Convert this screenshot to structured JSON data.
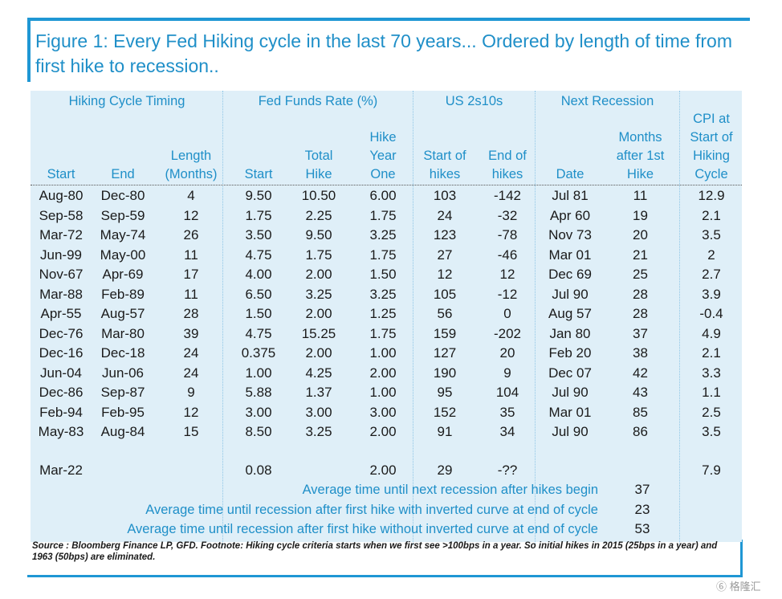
{
  "title": "Figure 1: Every Fed Hiking cycle in the last 70 years... Ordered by length of time from first hike to recession..",
  "groups": {
    "timing": "Hiking Cycle Timing",
    "fed": "Fed Funds Rate (%)",
    "us": "US 2s10s",
    "next": "Next Recession"
  },
  "headers": {
    "start": "Start",
    "end": "End",
    "length_1": "Length",
    "length_2": "(Months)",
    "ff_start": "Start",
    "total_1": "Total",
    "total_2": "Hike",
    "hike_1": "Hike",
    "hike_2": "Year",
    "hike_3": "One",
    "sof_1": "Start of",
    "sof_2": "hikes",
    "eof_1": "End of",
    "eof_2": "hikes",
    "date": "Date",
    "months_1": "Months",
    "months_2": "after 1st",
    "months_3": "Hike",
    "cpi_1": "CPI at",
    "cpi_2": "Start of",
    "cpi_3": "Hiking",
    "cpi_4": "Cycle"
  },
  "rows": [
    [
      "Aug-80",
      "Dec-80",
      "4",
      "9.50",
      "10.50",
      "6.00",
      "103",
      "-142",
      "Jul 81",
      "11",
      "12.9"
    ],
    [
      "Sep-58",
      "Sep-59",
      "12",
      "1.75",
      "2.25",
      "1.75",
      "24",
      "-32",
      "Apr 60",
      "19",
      "2.1"
    ],
    [
      "Mar-72",
      "May-74",
      "26",
      "3.50",
      "9.50",
      "3.25",
      "123",
      "-78",
      "Nov 73",
      "20",
      "3.5"
    ],
    [
      "Jun-99",
      "May-00",
      "11",
      "4.75",
      "1.75",
      "1.75",
      "27",
      "-46",
      "Mar 01",
      "21",
      "2"
    ],
    [
      "Nov-67",
      "Apr-69",
      "17",
      "4.00",
      "2.00",
      "1.50",
      "12",
      "12",
      "Dec 69",
      "25",
      "2.7"
    ],
    [
      "Mar-88",
      "Feb-89",
      "11",
      "6.50",
      "3.25",
      "3.25",
      "105",
      "-12",
      "Jul 90",
      "28",
      "3.9"
    ],
    [
      "Apr-55",
      "Aug-57",
      "28",
      "1.50",
      "2.00",
      "1.25",
      "56",
      "0",
      "Aug 57",
      "28",
      "-0.4"
    ],
    [
      "Dec-76",
      "Mar-80",
      "39",
      "4.75",
      "15.25",
      "1.75",
      "159",
      "-202",
      "Jan 80",
      "37",
      "4.9"
    ],
    [
      "Dec-16",
      "Dec-18",
      "24",
      "0.375",
      "2.00",
      "1.00",
      "127",
      "20",
      "Feb 20",
      "38",
      "2.1"
    ],
    [
      "Jun-04",
      "Jun-06",
      "24",
      "1.00",
      "4.25",
      "2.00",
      "190",
      "9",
      "Dec 07",
      "42",
      "3.3"
    ],
    [
      "Dec-86",
      "Sep-87",
      "9",
      "5.88",
      "1.37",
      "1.00",
      "95",
      "104",
      "Jul 90",
      "43",
      "1.1"
    ],
    [
      "Feb-94",
      "Feb-95",
      "12",
      "3.00",
      "3.00",
      "3.00",
      "152",
      "35",
      "Mar 01",
      "85",
      "2.5"
    ],
    [
      "May-83",
      "Aug-84",
      "15",
      "8.50",
      "3.25",
      "2.00",
      "91",
      "34",
      "Jul 90",
      "86",
      "3.5"
    ]
  ],
  "current": [
    "Mar-22",
    "",
    "",
    "0.08",
    "",
    "2.00",
    "29",
    "-??",
    "",
    "",
    "7.9"
  ],
  "averages": [
    {
      "label": "Average time until next recession after hikes begin",
      "value": "37"
    },
    {
      "label": "Average time until recession after first hike with inverted curve at end of cycle",
      "value": "23"
    },
    {
      "label": "Average time until recession after first hike without inverted curve at end of cycle",
      "value": "53"
    }
  ],
  "source": "Source : Bloomberg Finance LP, GFD. Footnote: Hiking cycle criteria starts when we first see >100bps in a year. So initial hikes in 2015 (25bps in a year) and 1963 (50bps) are eliminated.",
  "watermark": "⑥ 格隆汇"
}
